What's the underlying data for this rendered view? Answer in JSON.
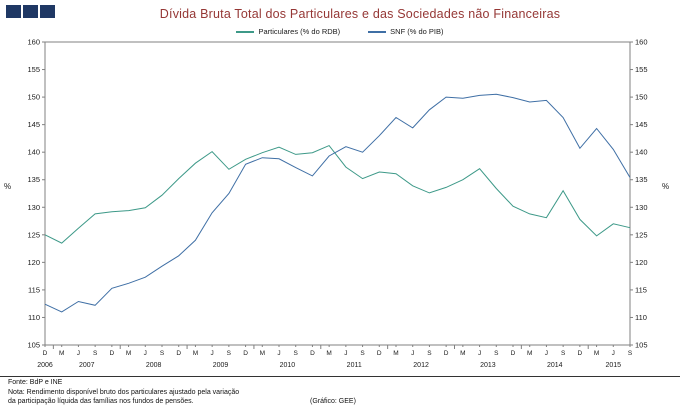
{
  "title": "Dívida Bruta Total dos Particulares e das Sociedades não Financeiras",
  "legend": [
    {
      "label": "Particulares (% do RDB)",
      "color": "#3d9988"
    },
    {
      "label": "SNF (% do PIB)",
      "color": "#3f6fa5"
    }
  ],
  "axes": {
    "y_label": "%"
  },
  "footer": {
    "fonte": "Fonte: BdP e INE",
    "nota_line1": "Nota: Rendimento disponível bruto dos particulares ajustado pela variação",
    "nota_line2": "da participação líquida das famílias nos fundos de pensões.",
    "grafico": "(Gráfico: GEE)"
  },
  "colors": {
    "title": "#953735",
    "logo_square": "#1f3864",
    "axis": "#808080",
    "text": "#1a1a1a"
  },
  "chart_data": {
    "type": "line",
    "title": "Dívida Bruta Total dos Particulares e das Sociedades não Financeiras",
    "ylim": [
      105,
      160
    ],
    "y_tick_step": 5,
    "grid": false,
    "legend_position": "top-center",
    "x_unit": "quarter",
    "quarters": [
      "D",
      "M",
      "J",
      "S",
      "D",
      "M",
      "J",
      "S",
      "D",
      "M",
      "J",
      "S",
      "D",
      "M",
      "J",
      "S",
      "D",
      "M",
      "J",
      "S",
      "D",
      "M",
      "J",
      "S",
      "D",
      "M",
      "J",
      "S",
      "D",
      "M",
      "J",
      "S",
      "D",
      "M",
      "J",
      "S"
    ],
    "year_ticks": [
      {
        "label": "2006",
        "index": 0
      },
      {
        "label": "2007",
        "index": 2.5
      },
      {
        "label": "2008",
        "index": 6.5
      },
      {
        "label": "2009",
        "index": 10.5
      },
      {
        "label": "2010",
        "index": 14.5
      },
      {
        "label": "2011",
        "index": 18.5
      },
      {
        "label": "2012",
        "index": 22.5
      },
      {
        "label": "2013",
        "index": 26.5
      },
      {
        "label": "2014",
        "index": 30.5
      },
      {
        "label": "2015",
        "index": 34
      }
    ],
    "series": [
      {
        "name": "Particulares (% do RDB)",
        "color": "#3d9988",
        "values": [
          125.0,
          123.5,
          126.2,
          128.8,
          129.2,
          129.4,
          129.9,
          132.2,
          135.2,
          138.0,
          140.1,
          136.9,
          138.7,
          139.9,
          140.9,
          139.6,
          139.9,
          141.2,
          137.3,
          135.2,
          136.4,
          136.1,
          133.9,
          132.6,
          133.6,
          135.0,
          137.0,
          133.4,
          130.2,
          128.8,
          128.1,
          133.0,
          127.8,
          124.8,
          127.0,
          126.3
        ]
      },
      {
        "name": "SNF (% do PIB)",
        "color": "#3f6fa5",
        "values": [
          112.4,
          111.0,
          112.9,
          112.2,
          115.3,
          116.2,
          117.3,
          119.3,
          121.2,
          124.0,
          129.0,
          132.5,
          137.8,
          139.0,
          138.8,
          137.2,
          135.7,
          139.3,
          141.0,
          140.0,
          143.0,
          146.3,
          144.4,
          147.7,
          150.0,
          149.8,
          150.3,
          150.5,
          149.9,
          149.1,
          149.4,
          146.3,
          140.7,
          144.3,
          140.5,
          135.4
        ]
      }
    ]
  }
}
